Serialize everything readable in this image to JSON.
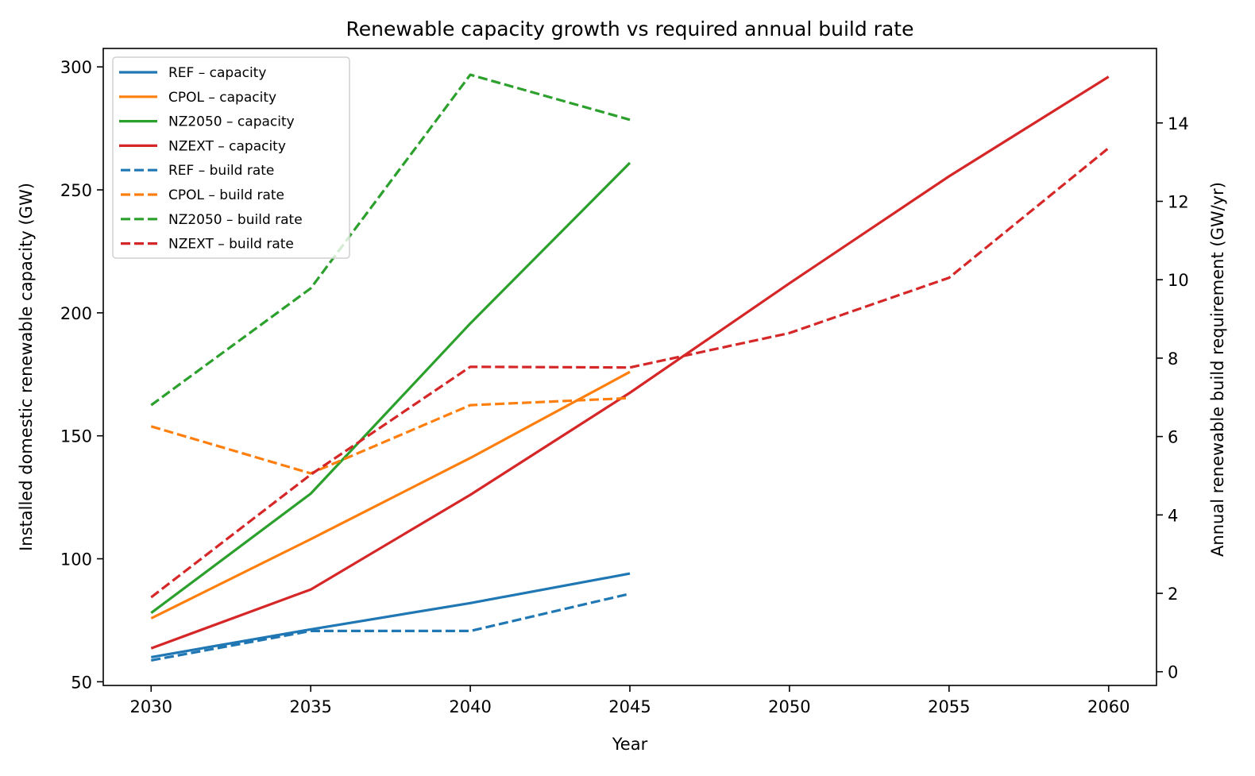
{
  "chart_data": {
    "type": "line",
    "title": "Renewable capacity growth vs required annual build rate",
    "xlabel": "Year",
    "ylabel": "Installed domestic renewable capacity (GW)",
    "y2label": "Annual renewable build requirement (GW/yr)",
    "xlim": [
      2028.5,
      2061.5
    ],
    "ylim": [
      48.5,
      307.5
    ],
    "y2lim": [
      -0.35,
      15.9
    ],
    "xticks": [
      2030,
      2035,
      2040,
      2045,
      2050,
      2055,
      2060
    ],
    "yticks": [
      50,
      100,
      150,
      200,
      250,
      300
    ],
    "y2ticks": [
      0,
      2,
      4,
      6,
      8,
      10,
      12,
      14
    ],
    "grid": false,
    "legend_position": "upper-left",
    "series": [
      {
        "name": "REF – capacity",
        "axis": "left",
        "style": "solid",
        "color": "#1f77b4",
        "x": [
          2030,
          2035,
          2040,
          2045
        ],
        "values": [
          60,
          71.3,
          82,
          94
        ]
      },
      {
        "name": "CPOL – capacity",
        "axis": "left",
        "style": "solid",
        "color": "#ff7f0e",
        "x": [
          2030,
          2035,
          2040,
          2045
        ],
        "values": [
          75.8,
          108,
          141,
          176
        ]
      },
      {
        "name": "NZ2050 – capacity",
        "axis": "left",
        "style": "solid",
        "color": "#2ca02c",
        "x": [
          2030,
          2035,
          2040,
          2045
        ],
        "values": [
          78,
          126.5,
          195.7,
          261
        ]
      },
      {
        "name": "NZEXT – capacity",
        "axis": "left",
        "style": "solid",
        "color": "#d62728",
        "x": [
          2030,
          2035,
          2040,
          2045,
          2050,
          2055,
          2060
        ],
        "values": [
          63.6,
          87.5,
          126,
          167.5,
          212,
          255.5,
          296
        ]
      },
      {
        "name": "REF – build rate",
        "axis": "right",
        "style": "dashed",
        "color": "#1f77b4",
        "x": [
          2030,
          2035,
          2040,
          2045
        ],
        "values": [
          0.29,
          1.04,
          1.04,
          1.99
        ]
      },
      {
        "name": "CPOL – build rate",
        "axis": "right",
        "style": "dashed",
        "color": "#ff7f0e",
        "x": [
          2030,
          2035,
          2040,
          2045
        ],
        "values": [
          6.26,
          5.06,
          6.8,
          6.98
        ]
      },
      {
        "name": "NZ2050 – build rate",
        "axis": "right",
        "style": "dashed",
        "color": "#2ca02c",
        "x": [
          2030,
          2035,
          2040,
          2045
        ],
        "values": [
          6.8,
          9.78,
          15.23,
          14.08
        ]
      },
      {
        "name": "NZEXT – build rate",
        "axis": "right",
        "style": "dashed",
        "color": "#d62728",
        "x": [
          2030,
          2035,
          2040,
          2045,
          2050,
          2055,
          2060
        ],
        "values": [
          1.9,
          5.03,
          7.78,
          7.76,
          8.64,
          10.05,
          13.36
        ]
      }
    ]
  }
}
